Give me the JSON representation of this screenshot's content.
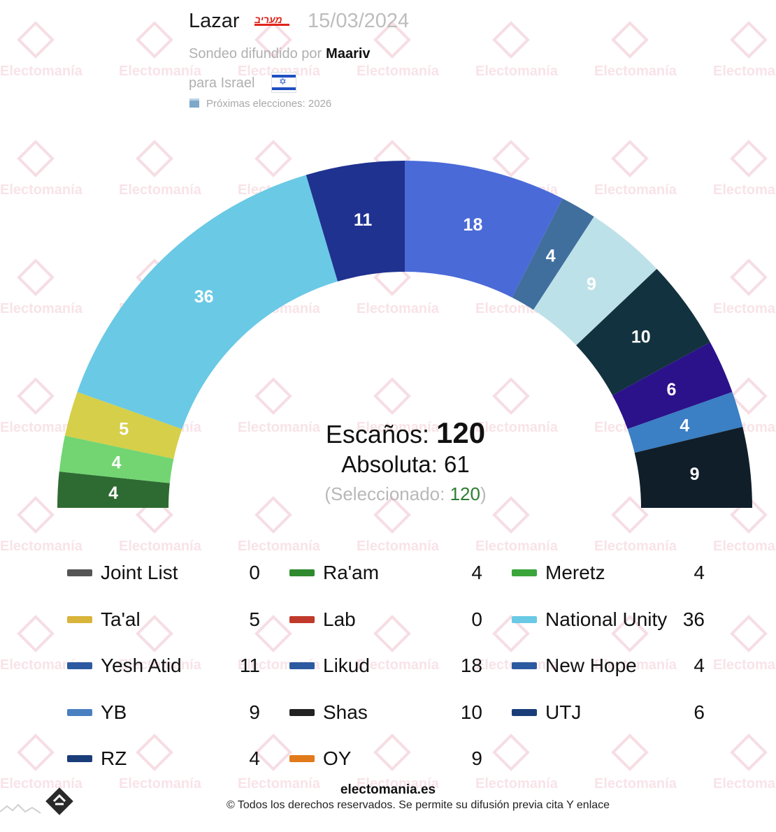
{
  "header": {
    "pollster": "Lazar",
    "media_logo_text": "מעריב",
    "date": "15/03/2024",
    "sponsor_prefix": "Sondeo difundido por",
    "sponsor": "Maariv",
    "country_prefix": "para Israel",
    "next_elections": "Próximas elecciones: 2026"
  },
  "watermark": "Electomanía",
  "summary": {
    "seats_label": "Escaños:",
    "seats_total": "120",
    "majority_label": "Absoluta: 61",
    "selected_prefix": "(Seleccionado: ",
    "selected_value": "120",
    "selected_suffix": ")"
  },
  "chart_data": {
    "type": "hemicycle",
    "total": 120,
    "majority": 61,
    "segments": [
      {
        "party": "RZ",
        "seats": 4,
        "color": "#2e6b32"
      },
      {
        "party": "Ra'am",
        "seats": 4,
        "color": "#72d572"
      },
      {
        "party": "Ta'al",
        "seats": 5,
        "color": "#d6cf49"
      },
      {
        "party": "National Unity",
        "seats": 36,
        "color": "#6ac9e5"
      },
      {
        "party": "Yesh Atid",
        "seats": 11,
        "color": "#1f3290"
      },
      {
        "party": "Likud",
        "seats": 18,
        "color": "#4a6ad8"
      },
      {
        "party": "New Hope",
        "seats": 4,
        "color": "#406f9e"
      },
      {
        "party": "YB",
        "seats": 9,
        "color": "#bde1e8"
      },
      {
        "party": "Shas",
        "seats": 10,
        "color": "#13323f"
      },
      {
        "party": "UTJ",
        "seats": 6,
        "color": "#2b128a"
      },
      {
        "party": "Meretz",
        "seats": 4,
        "color": "#3b7fc4"
      },
      {
        "party": "OY",
        "seats": 9,
        "color": "#101e29"
      }
    ]
  },
  "legend": [
    {
      "name": "Joint List",
      "value": "0",
      "logo_color": "#555555"
    },
    {
      "name": "Ra'am",
      "value": "4",
      "logo_color": "#2f8a2f"
    },
    {
      "name": "Meretz",
      "value": "4",
      "logo_color": "#3aa53a"
    },
    {
      "name": "Ta'al",
      "value": "5",
      "logo_color": "#d9b43a"
    },
    {
      "name": "Lab",
      "value": "0",
      "logo_color": "#c0392b"
    },
    {
      "name": "National Unity",
      "value": "36",
      "logo_color": "#6ac9e5"
    },
    {
      "name": "Yesh Atid",
      "value": "11",
      "logo_color": "#2c5aa0"
    },
    {
      "name": "Likud",
      "value": "18",
      "logo_color": "#2c5aa0"
    },
    {
      "name": "New Hope",
      "value": "4",
      "logo_color": "#2c5aa0"
    },
    {
      "name": "YB",
      "value": "9",
      "logo_color": "#4a7fc0"
    },
    {
      "name": "Shas",
      "value": "10",
      "logo_color": "#222222"
    },
    {
      "name": "UTJ",
      "value": "6",
      "logo_color": "#1a3d7a"
    },
    {
      "name": "RZ",
      "value": "4",
      "logo_color": "#1a3d7a"
    },
    {
      "name": "OY",
      "value": "9",
      "logo_color": "#e07a1a"
    }
  ],
  "footer": {
    "site": "electomania.es",
    "copyright": "© Todos los derechos reservados. Se permite su difusión previa cita Y enlace"
  }
}
